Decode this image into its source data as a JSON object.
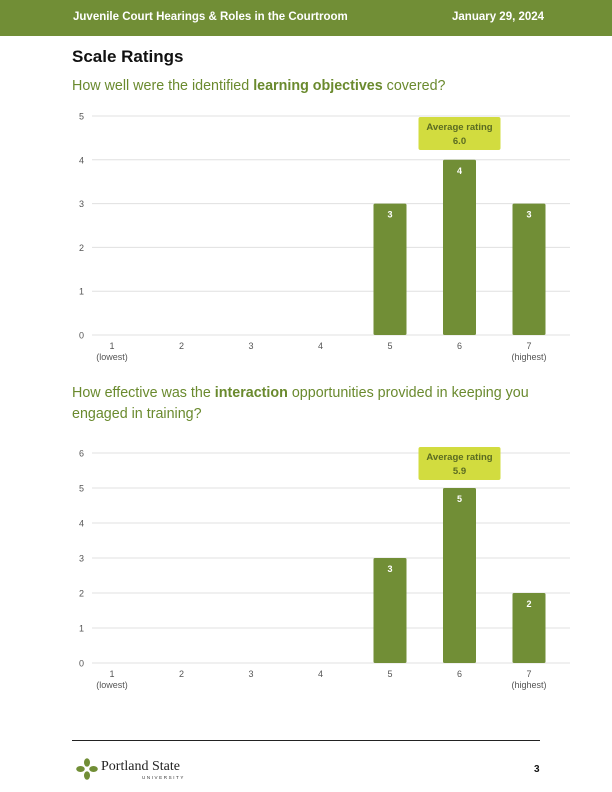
{
  "header": {
    "title": "Juvenile Court Hearings & Roles in the Courtroom",
    "date": "January 29, 2024",
    "colors": {
      "background": "#718e36",
      "text": "#ffffff"
    }
  },
  "section_title": "Scale Ratings",
  "questions": [
    {
      "before": "How well were the identified ",
      "bold": "learning objectives",
      "after": " covered?"
    },
    {
      "before": "How effective was the ",
      "bold": "interaction",
      "after": " opportunities provided in keeping you engaged in training?"
    }
  ],
  "colors": {
    "bar": "#718e36",
    "badge": "#d2dc3f",
    "grid": "#e0e0e0",
    "question": "#6a8a2e"
  },
  "chart_data": [
    {
      "type": "bar",
      "title": "How well were the identified learning objectives covered?",
      "categories": [
        "1",
        "2",
        "3",
        "4",
        "5",
        "6",
        "7"
      ],
      "category_sublabels": [
        "(lowest)",
        "",
        "",
        "",
        "",
        "",
        "(highest)"
      ],
      "values": [
        0,
        0,
        0,
        0,
        3,
        4,
        3
      ],
      "data_labels": [
        "",
        "",
        "",
        "",
        "3",
        "4",
        "3"
      ],
      "ylim": [
        0,
        5
      ],
      "yticks": [
        0,
        1,
        2,
        3,
        4,
        5
      ],
      "grid": true,
      "average": {
        "label": "Average rating",
        "value": "6.0"
      }
    },
    {
      "type": "bar",
      "title": "How effective was the interaction opportunities provided in keeping you engaged in training?",
      "categories": [
        "1",
        "2",
        "3",
        "4",
        "5",
        "6",
        "7"
      ],
      "category_sublabels": [
        "(lowest)",
        "",
        "",
        "",
        "",
        "",
        "(highest)"
      ],
      "values": [
        0,
        0,
        0,
        0,
        3,
        5,
        2
      ],
      "data_labels": [
        "",
        "",
        "",
        "",
        "3",
        "5",
        "2"
      ],
      "ylim": [
        0,
        6
      ],
      "yticks": [
        0,
        1,
        2,
        3,
        4,
        5,
        6
      ],
      "grid": true,
      "average": {
        "label": "Average rating",
        "value": "5.9"
      }
    }
  ],
  "footer": {
    "logo_name": "Portland State",
    "logo_sub": "UNIVERSITY",
    "logo_icon": "portland-state-leaf-icon",
    "page_number": "3"
  }
}
